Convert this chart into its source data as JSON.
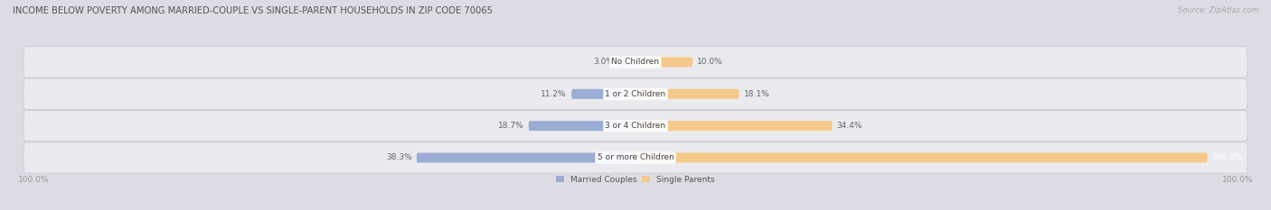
{
  "title": "INCOME BELOW POVERTY AMONG MARRIED-COUPLE VS SINGLE-PARENT HOUSEHOLDS IN ZIP CODE 70065",
  "source": "Source: ZipAtlas.com",
  "categories": [
    "No Children",
    "1 or 2 Children",
    "3 or 4 Children",
    "5 or more Children"
  ],
  "married_values": [
    3.0,
    11.2,
    18.7,
    38.3
  ],
  "single_values": [
    10.0,
    18.1,
    34.4,
    100.0
  ],
  "married_color": "#9badd4",
  "single_color": "#f5c98a",
  "bg_color": "#dcdce4",
  "row_bg_color": "#ebebef",
  "title_color": "#555555",
  "label_color": "#666666",
  "axis_label_color": "#999999",
  "source_color": "#aaaaaa",
  "max_val": 100.0,
  "figsize": [
    14.06,
    2.33
  ],
  "dpi": 100
}
